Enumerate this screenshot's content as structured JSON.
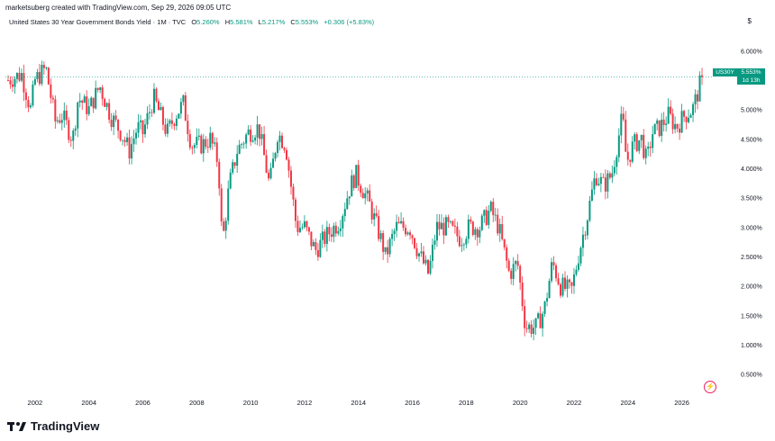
{
  "header": {
    "attribution": "marketsuberg created with TradingView.com, Sep 29, 2026 09:05 UTC",
    "symbol_desc": "United States 30 Year Government Bonds Yield · 1M · TVC",
    "open_label": "O",
    "open_value": "5.260%",
    "high_label": "H",
    "high_value": "5.581%",
    "low_label": "L",
    "low_value": "5.217%",
    "close_label": "C",
    "close_value": "5.553%",
    "change": "+0.306 (+5.83%)",
    "currency": "$"
  },
  "price_marker": {
    "ticker": "US30Y",
    "value": "5.553%",
    "countdown": "1d 13h"
  },
  "brand": {
    "name": "TradingView"
  },
  "colors": {
    "up": "#089981",
    "down": "#f23645",
    "grid_text": "#131722",
    "bolt": "#e91e63"
  },
  "icons": {
    "logo": "tradingview-logo-icon",
    "bolt": "lightning-bolt-icon"
  },
  "chart_data": {
    "type": "candlestick",
    "title": "United States 30 Year Government Bonds Yield",
    "interval": "1M",
    "y_unit": "%",
    "ylim": [
      0.25,
      6.25
    ],
    "xlim": [
      2000.9,
      2026.95
    ],
    "x_ticks": [
      "2002",
      "2004",
      "2006",
      "2008",
      "2010",
      "2012",
      "2014",
      "2016",
      "2018",
      "2020",
      "2022",
      "2024",
      "2026"
    ],
    "y_ticks": [
      "0.500%",
      "1.000%",
      "1.500%",
      "2.000%",
      "2.500%",
      "3.000%",
      "3.500%",
      "4.000%",
      "4.500%",
      "5.000%",
      "5.500%",
      "6.000%"
    ],
    "last_close": 5.553,
    "grid": false,
    "x_date_format": "year+month/12",
    "series": [
      {
        "points": [
          [
            2001.0,
            5.5
          ],
          [
            2001.5,
            5.6
          ],
          [
            2001.83,
            5.0
          ],
          [
            2002.0,
            5.5
          ],
          [
            2002.4,
            5.7
          ],
          [
            2002.75,
            4.8
          ],
          [
            2003.0,
            4.9
          ],
          [
            2003.4,
            4.5
          ],
          [
            2003.6,
            5.2
          ],
          [
            2004.0,
            5.0
          ],
          [
            2004.4,
            5.4
          ],
          [
            2004.8,
            4.9
          ],
          [
            2005.2,
            4.6
          ],
          [
            2005.5,
            4.3
          ],
          [
            2005.8,
            4.7
          ],
          [
            2006.0,
            4.6
          ],
          [
            2006.4,
            5.2
          ],
          [
            2006.9,
            4.6
          ],
          [
            2007.2,
            4.9
          ],
          [
            2007.5,
            5.1
          ],
          [
            2007.8,
            4.4
          ],
          [
            2008.2,
            4.4
          ],
          [
            2008.5,
            4.5
          ],
          [
            2008.8,
            4.1
          ],
          [
            2008.95,
            2.7
          ],
          [
            2009.2,
            3.7
          ],
          [
            2009.5,
            4.3
          ],
          [
            2009.9,
            4.6
          ],
          [
            2010.3,
            4.7
          ],
          [
            2010.7,
            3.7
          ],
          [
            2011.0,
            4.6
          ],
          [
            2011.3,
            4.4
          ],
          [
            2011.7,
            3.0
          ],
          [
            2012.0,
            3.0
          ],
          [
            2012.4,
            2.6
          ],
          [
            2012.9,
            2.9
          ],
          [
            2013.3,
            3.1
          ],
          [
            2013.7,
            3.7
          ],
          [
            2013.9,
            3.9
          ],
          [
            2014.4,
            3.4
          ],
          [
            2014.9,
            2.7
          ],
          [
            2015.0,
            2.5
          ],
          [
            2015.4,
            3.0
          ],
          [
            2015.9,
            3.0
          ],
          [
            2016.2,
            2.6
          ],
          [
            2016.6,
            2.2
          ],
          [
            2016.9,
            3.0
          ],
          [
            2017.3,
            3.0
          ],
          [
            2017.8,
            2.8
          ],
          [
            2018.1,
            3.0
          ],
          [
            2018.5,
            3.0
          ],
          [
            2018.9,
            3.3
          ],
          [
            2019.2,
            3.0
          ],
          [
            2019.6,
            2.2
          ],
          [
            2019.9,
            2.4
          ],
          [
            2020.2,
            1.3
          ],
          [
            2020.6,
            1.3
          ],
          [
            2020.9,
            1.6
          ],
          [
            2021.2,
            2.4
          ],
          [
            2021.5,
            2.0
          ],
          [
            2021.9,
            1.9
          ],
          [
            2022.2,
            2.6
          ],
          [
            2022.5,
            3.2
          ],
          [
            2022.8,
            3.9
          ],
          [
            2023.1,
            3.7
          ],
          [
            2023.4,
            3.9
          ],
          [
            2023.8,
            4.9
          ],
          [
            2023.95,
            4.1
          ],
          [
            2024.2,
            4.4
          ],
          [
            2024.5,
            4.5
          ],
          [
            2024.7,
            4.1
          ],
          [
            2024.9,
            4.6
          ],
          [
            2025.2,
            4.7
          ],
          [
            2025.5,
            4.9
          ],
          [
            2025.8,
            4.7
          ],
          [
            2026.1,
            4.9
          ],
          [
            2026.4,
            5.0
          ],
          [
            2026.6,
            5.3
          ],
          [
            2026.75,
            5.553
          ]
        ]
      }
    ]
  }
}
